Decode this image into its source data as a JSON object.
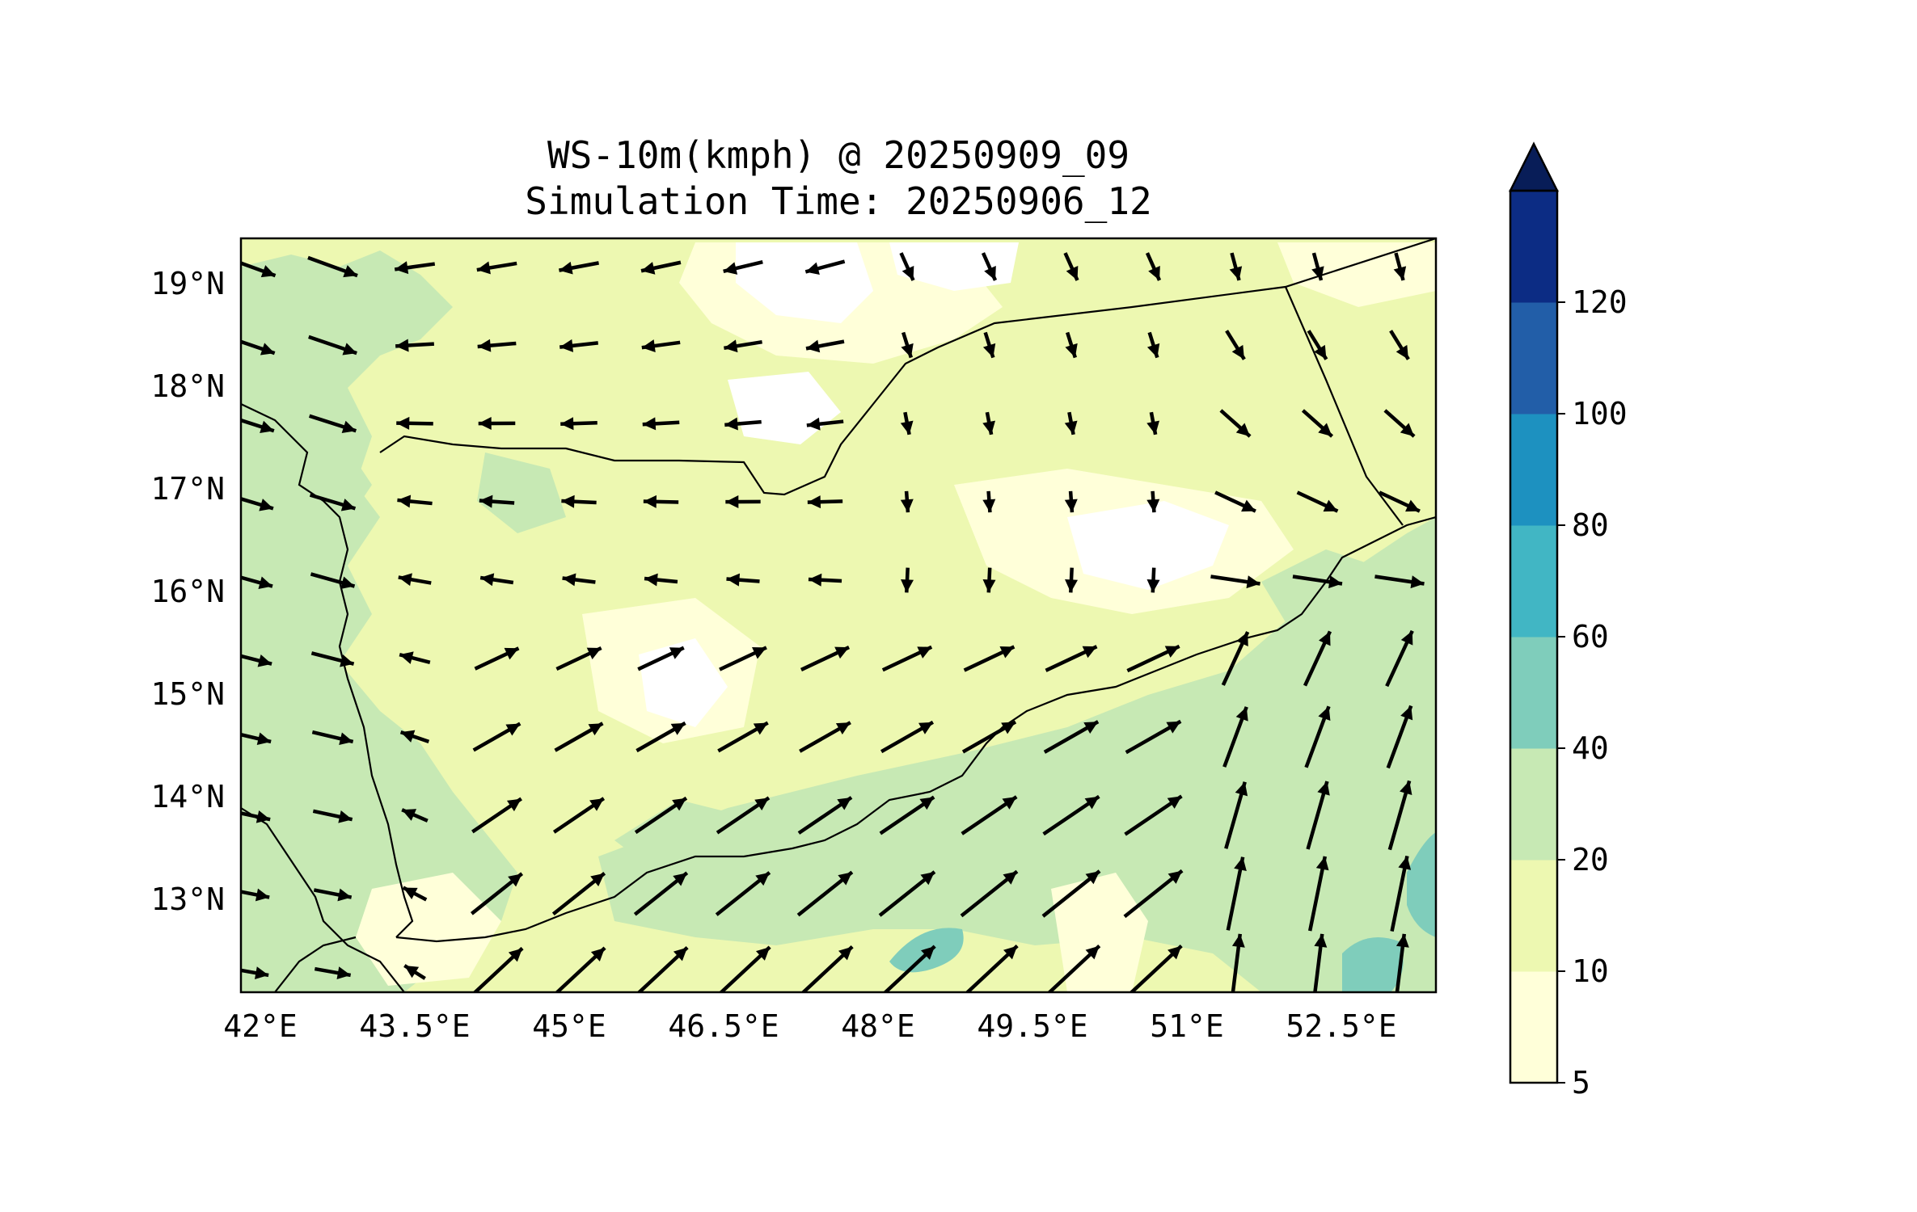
{
  "map": {
    "title": "WS-10m(kmph) @ 20250909_09",
    "subtitle": "Simulation Time: 20250906_12",
    "lon_ticks": [
      "42°E",
      "43.5°E",
      "45°E",
      "46.5°E",
      "48°E",
      "49.5°E",
      "51°E",
      "52.5°E"
    ],
    "lat_ticks": [
      "19°N",
      "18°N",
      "17°N",
      "16°N",
      "15°N",
      "14°N",
      "13°N"
    ],
    "extent": {
      "lon": [
        41.9,
        53.5
      ],
      "lat": [
        12.1,
        19.45
      ]
    }
  },
  "colorbar": {
    "levels": [
      "5",
      "10",
      "20",
      "40",
      "60",
      "80",
      "100",
      "120"
    ],
    "colors": [
      "#ffffd9",
      "#edf8b1",
      "#c7e9b4",
      "#7fcdbb",
      "#41b6c4",
      "#1d91c0",
      "#225ea8",
      "#0c2c84"
    ],
    "extend_color": "#081d58"
  },
  "colors": {
    "land_base": "#edf8b1",
    "calm": "#ffffff",
    "light": "#ffffd9",
    "moderate": "#c7e9b4",
    "strong": "#7fcdbb",
    "border": "#000000",
    "arrow": "#000000"
  }
}
